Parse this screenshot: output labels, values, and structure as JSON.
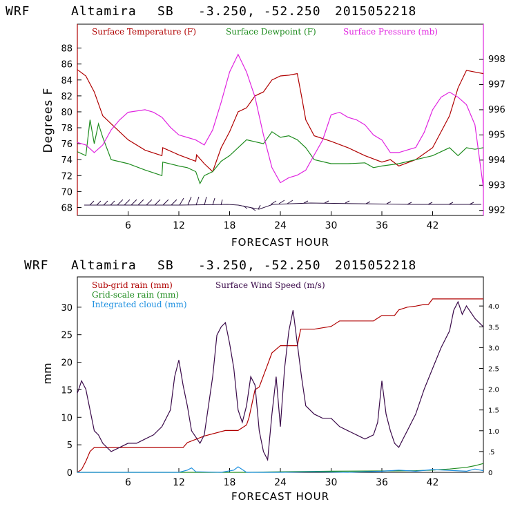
{
  "chart_data": [
    {
      "type": "line",
      "header": [
        "WRF",
        "Altamira",
        "SB",
        "-3.250, -52.250",
        "2015052218"
      ],
      "xlabel": "FORECAST HOUR",
      "ylabel": "Degrees F",
      "xlim": [
        0,
        48
      ],
      "xticks": [
        6,
        12,
        18,
        24,
        30,
        36,
        42
      ],
      "ylim_left": [
        67,
        91
      ],
      "yticks_left": [
        68,
        70,
        72,
        74,
        76,
        78,
        80,
        82,
        84,
        86,
        88
      ],
      "ylim_right": [
        991.8,
        999.4
      ],
      "yticks_right": [
        992,
        993,
        994,
        995,
        996,
        997,
        998
      ],
      "legend": [
        {
          "label": "Surface Temperature (F)",
          "color": "#b00000"
        },
        {
          "label": "Surface Dewpoint (F)",
          "color": "#1f8c1f"
        },
        {
          "label": "Surface Pressure (mb)",
          "color": "#e024e0"
        }
      ],
      "series": [
        {
          "name": "Surface Temperature (F)",
          "axis": "left",
          "color": "#b00000",
          "x": [
            0,
            1,
            2,
            3,
            4,
            6,
            8,
            10,
            10.1,
            12,
            13,
            14,
            14.1,
            15,
            16,
            17,
            18,
            19,
            20,
            21,
            22,
            23,
            24,
            25,
            26,
            26.5,
            27,
            28,
            30,
            32,
            34,
            36,
            37,
            38,
            40,
            42,
            44,
            45,
            46,
            47,
            48
          ],
          "y": [
            85.3,
            84.5,
            82.5,
            79.5,
            78.5,
            76.5,
            75.2,
            74.5,
            75.5,
            74.6,
            74.2,
            73.8,
            74.6,
            73.5,
            72.5,
            75.5,
            77.5,
            80,
            80.5,
            82,
            82.5,
            84,
            84.5,
            84.6,
            84.8,
            82,
            79,
            77,
            76.3,
            75.5,
            74.5,
            73.7,
            74,
            73.2,
            74,
            75.5,
            79.5,
            83,
            85.2,
            85,
            84.8
          ]
        },
        {
          "name": "Surface Dewpoint (F)",
          "axis": "left",
          "color": "#1f8c1f",
          "x": [
            0,
            1,
            1.5,
            2,
            2.5,
            3,
            4,
            6,
            8,
            10,
            10.1,
            12,
            13,
            14,
            14.5,
            15,
            16,
            17,
            18,
            19,
            20,
            22,
            23,
            24,
            25,
            26,
            27,
            28,
            30,
            32,
            34,
            35,
            36,
            38,
            40,
            42,
            44,
            45,
            46,
            47,
            48
          ],
          "y": [
            75,
            74.5,
            79,
            76,
            78.5,
            76.8,
            74,
            73.5,
            72.7,
            72,
            73.7,
            73.2,
            73,
            72.5,
            71,
            72,
            72.5,
            73.8,
            74.5,
            75.5,
            76.5,
            76,
            77.5,
            76.8,
            77,
            76.5,
            75.5,
            74,
            73.5,
            73.5,
            73.6,
            73,
            73.2,
            73.5,
            74,
            74.5,
            75.5,
            74.5,
            75.5,
            75.3,
            75.5
          ]
        },
        {
          "name": "Surface Pressure (mb)",
          "axis": "right",
          "color": "#e024e0",
          "x": [
            0,
            1,
            2,
            3,
            4,
            5,
            6,
            8,
            9,
            10,
            11,
            12,
            13,
            14,
            15,
            16,
            17,
            18,
            19,
            20,
            21,
            22,
            23,
            24,
            25,
            26,
            27,
            28,
            29,
            30,
            31,
            32,
            33,
            34,
            35,
            36,
            37,
            38,
            39,
            40,
            41,
            42,
            43,
            44,
            45,
            46,
            47,
            48
          ],
          "y": [
            994.7,
            994.6,
            994.3,
            994.6,
            995.2,
            995.6,
            995.9,
            996.0,
            995.9,
            995.7,
            995.3,
            995.0,
            994.9,
            994.8,
            994.6,
            995.2,
            996.3,
            997.5,
            998.2,
            997.5,
            996.5,
            995.0,
            993.7,
            993.1,
            993.3,
            993.4,
            993.6,
            994.2,
            994.8,
            995.8,
            995.9,
            995.7,
            995.6,
            995.4,
            995.0,
            994.8,
            994.3,
            994.3,
            994.4,
            994.5,
            995.1,
            996.0,
            996.5,
            996.7,
            996.5,
            996.2,
            995.4,
            992.9
          ]
        }
      ]
    },
    {
      "type": "line",
      "header": [
        "WRF",
        "Altamira",
        "SB",
        "-3.250, -52.250",
        "2015052218"
      ],
      "xlabel": "FORECAST HOUR",
      "ylabel": "mm",
      "xlim": [
        0,
        48
      ],
      "xticks": [
        6,
        12,
        18,
        24,
        30,
        36,
        42
      ],
      "ylim_left": [
        0,
        35.5
      ],
      "yticks_left": [
        0,
        5,
        10,
        15,
        20,
        25,
        30
      ],
      "ylim_right": [
        0,
        4.7
      ],
      "yticks_right": [
        0,
        0.5,
        1.0,
        1.5,
        2.0,
        2.5,
        3.0,
        3.5,
        4.0
      ],
      "yticklabels_right": [
        "0",
        ".5",
        "1.0",
        "1.5",
        "2.0",
        "2.5",
        "3.0",
        "3.5",
        "4.0"
      ],
      "legend": [
        {
          "label": "Sub-grid rain (mm)",
          "color": "#b00000"
        },
        {
          "label": "Surface Wind Speed (m/s)",
          "color": "#3a0a4a"
        },
        {
          "label": "Grid-scale rain (mm)",
          "color": "#1f8c1f"
        },
        {
          "label": "Integrated cloud (mm)",
          "color": "#1e90e0"
        }
      ],
      "series": [
        {
          "name": "Sub-grid rain (mm)",
          "axis": "left",
          "color": "#b00000",
          "x": [
            0,
            0.5,
            1,
            1.5,
            2,
            12.5,
            13,
            15,
            17.5,
            18.5,
            19,
            20,
            20.3,
            21,
            21.5,
            22.5,
            23,
            24,
            26,
            26.4,
            28,
            30,
            31,
            35,
            36,
            37.5,
            38,
            39,
            40,
            41,
            41.5,
            42,
            48
          ],
          "y": [
            0,
            0.5,
            2,
            3.8,
            4.5,
            4.5,
            5.4,
            6.6,
            7.6,
            7.6,
            7.6,
            8.6,
            10,
            15,
            15.5,
            19.6,
            21.7,
            23,
            23,
            26,
            26,
            26.5,
            27.5,
            27.5,
            28.5,
            28.5,
            29.5,
            30,
            30.2,
            30.5,
            30.5,
            31.5,
            31.5
          ]
        },
        {
          "name": "Grid-scale rain (mm)",
          "axis": "left",
          "color": "#1f8c1f",
          "x": [
            0,
            20,
            24,
            30,
            36,
            40,
            42,
            44,
            46,
            47,
            48
          ],
          "y": [
            0,
            0,
            0.1,
            0.2,
            0.25,
            0.3,
            0.4,
            0.6,
            0.9,
            1.2,
            1.6
          ]
        },
        {
          "name": "Integrated cloud (mm)",
          "axis": "left",
          "color": "#1e90e0",
          "x": [
            0,
            12,
            13,
            13.5,
            14,
            17,
            18.5,
            19,
            19.5,
            20,
            24,
            28,
            32,
            36,
            38,
            40,
            42,
            46,
            47,
            48
          ],
          "y": [
            0,
            0,
            0.4,
            0.8,
            0.1,
            0,
            0.4,
            1.0,
            0.5,
            0,
            0,
            0.1,
            0,
            0.2,
            0.4,
            0.2,
            0.5,
            0.2,
            0.6,
            0.3
          ]
        },
        {
          "name": "Surface Wind Speed (m/s)",
          "axis": "right",
          "color": "#3a0a4a",
          "x": [
            0,
            0.5,
            1,
            1.5,
            2,
            2.5,
            3,
            3.5,
            4,
            5,
            6,
            7,
            8,
            9,
            10,
            11,
            11.5,
            12,
            12.5,
            13,
            13.5,
            14,
            14.5,
            15,
            16,
            16.5,
            17,
            17.5,
            18,
            18.5,
            19,
            19.5,
            20,
            20.5,
            21,
            21.5,
            22,
            22.5,
            23,
            23.5,
            24,
            24.5,
            25,
            25.5,
            26,
            26.5,
            27,
            28,
            29,
            30,
            31,
            32,
            33,
            34,
            35,
            35.5,
            36,
            36.5,
            37,
            37.5,
            38,
            38.5,
            39,
            40,
            41,
            42,
            43,
            44,
            44.5,
            45,
            45.5,
            46,
            47,
            48
          ],
          "y": [
            1.9,
            2.2,
            2.0,
            1.5,
            1.0,
            0.9,
            0.7,
            0.6,
            0.5,
            0.6,
            0.7,
            0.7,
            0.8,
            0.9,
            1.1,
            1.5,
            2.3,
            2.7,
            2.1,
            1.6,
            1.0,
            0.85,
            0.7,
            0.9,
            2.3,
            3.3,
            3.5,
            3.6,
            3.1,
            2.5,
            1.5,
            1.2,
            1.6,
            2.3,
            2.1,
            1.0,
            0.5,
            0.3,
            1.4,
            2.3,
            1.1,
            2.5,
            3.4,
            3.9,
            3.1,
            2.3,
            1.6,
            1.4,
            1.3,
            1.3,
            1.1,
            1.0,
            0.9,
            0.8,
            0.9,
            1.2,
            2.2,
            1.4,
            1.0,
            0.7,
            0.6,
            0.8,
            1.0,
            1.4,
            2.0,
            2.5,
            3.0,
            3.4,
            3.9,
            4.1,
            3.8,
            4.0,
            3.7,
            3.5
          ]
        }
      ]
    }
  ]
}
